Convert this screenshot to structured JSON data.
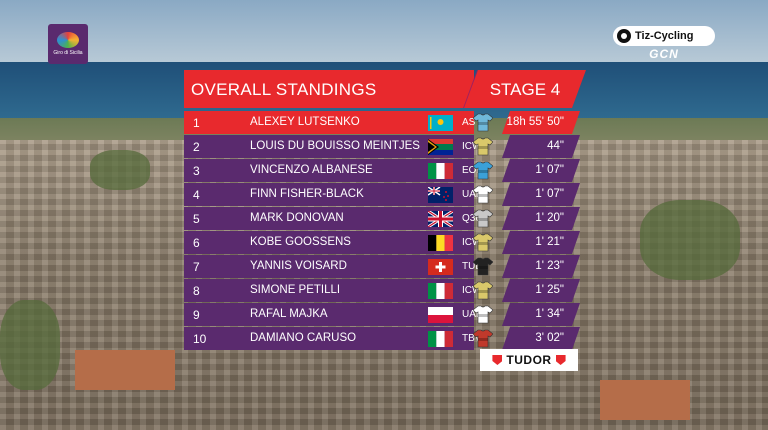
{
  "branding": {
    "event_logo_text": "Giro di Sicilia",
    "broadcaster_name": "Tiz-Cycling",
    "broadcaster_sub": "GCN",
    "sponsor": "TUDOR"
  },
  "standings": {
    "title": "OVERALL STANDINGS",
    "stage": "STAGE 4",
    "rows": [
      {
        "rank": "1",
        "name": "ALEXEY LUTSENKO",
        "flag": "kazakhstan",
        "team": "AST",
        "time": "18h 55' 50\"",
        "jersey": "#6fb8d9"
      },
      {
        "rank": "2",
        "name": "LOUIS DU BOUISSO MEINTJES",
        "flag": "south-africa",
        "team": "ICW",
        "time": "44\"",
        "jersey": "#d9c86a"
      },
      {
        "rank": "3",
        "name": "VINCENZO ALBANESE",
        "flag": "italy",
        "team": "EOK",
        "time": "1' 07\"",
        "jersey": "#3aa0d8"
      },
      {
        "rank": "4",
        "name": "FINN FISHER-BLACK",
        "flag": "new-zealand",
        "team": "UAD",
        "time": "1' 07\"",
        "jersey": "#ffffff"
      },
      {
        "rank": "5",
        "name": "MARK DONOVAN",
        "flag": "uk",
        "team": "Q36",
        "time": "1' 20\"",
        "jersey": "#c8c8c8"
      },
      {
        "rank": "6",
        "name": "KOBE GOOSSENS",
        "flag": "belgium",
        "team": "ICW",
        "time": "1' 21\"",
        "jersey": "#d9c86a"
      },
      {
        "rank": "7",
        "name": "YANNIS VOISARD",
        "flag": "switzerland",
        "team": "TUD",
        "time": "1' 23\"",
        "jersey": "#222222"
      },
      {
        "rank": "8",
        "name": "SIMONE PETILLI",
        "flag": "italy",
        "team": "ICW",
        "time": "1' 25\"",
        "jersey": "#d9c86a"
      },
      {
        "rank": "9",
        "name": "RAFAL MAJKA",
        "flag": "poland",
        "team": "UAD",
        "time": "1' 34\"",
        "jersey": "#ffffff"
      },
      {
        "rank": "10",
        "name": "DAMIANO CARUSO",
        "flag": "italy",
        "team": "TBV",
        "time": "3' 02\"",
        "jersey": "#c0392b"
      }
    ]
  },
  "colors": {
    "accent_red": "#e8292d",
    "row_purple": "#5a2a6e"
  }
}
